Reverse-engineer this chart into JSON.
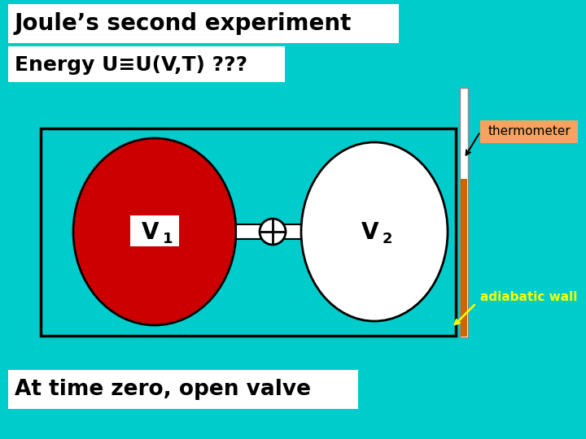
{
  "bg_color": "#00CCCC",
  "title": "Joule’s second experiment",
  "subtitle": "Energy U≡U(V,T) ???",
  "bottom_text": "At time zero, open valve",
  "thermometer_label": "thermometer",
  "adiabatic_label": "adiabatic wall",
  "title_box_color": "#FFFFFF",
  "subtitle_box_color": "#FFFFFF",
  "bottom_box_color": "#FFFFFF",
  "thermometer_box_color": "#F4A460",
  "container_fill": "#00CCCC",
  "container_edge": "#000000",
  "v1_fill": "#CC0000",
  "v2_fill": "#FFFFFF",
  "thermo_orange": "#CC6600",
  "thermo_white": "#FFFFFF",
  "yellow_text": "#FFFF00",
  "black_text": "#000000"
}
